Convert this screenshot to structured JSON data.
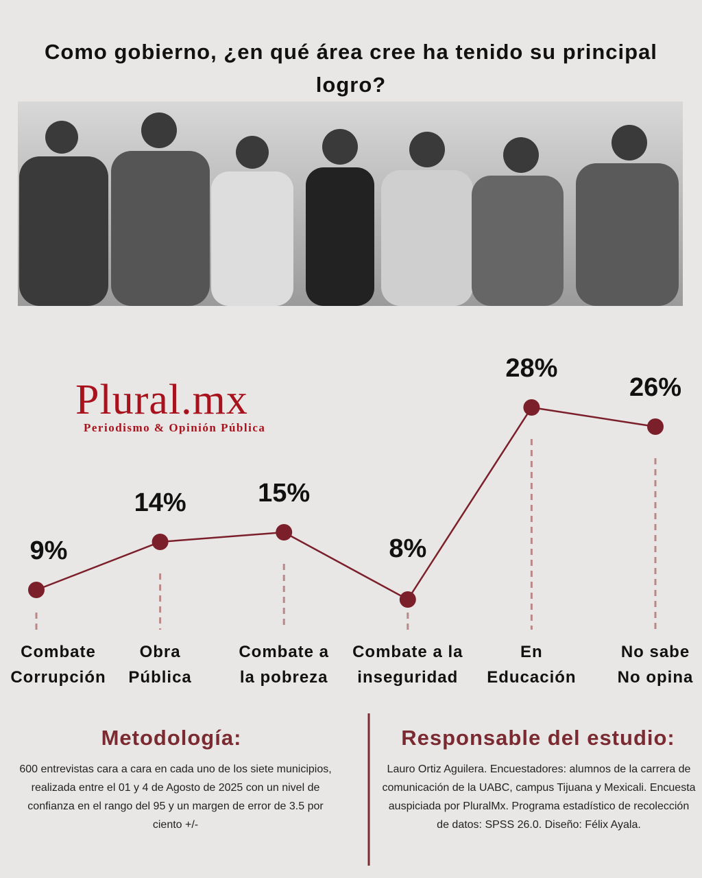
{
  "chart_data": {
    "type": "line",
    "title": "Como gobierno, ¿en qué área cree ha tenido su principal logro?",
    "categories": [
      "Combate Corrupción",
      "Obra Pública",
      "Combate a la pobreza",
      "Combate a la inseguridad",
      "En Educación",
      "No sabe No opina"
    ],
    "values": [
      9,
      14,
      15,
      8,
      28,
      26
    ],
    "value_labels": [
      "9%",
      "14%",
      "15%",
      "8%",
      "28%",
      "26%"
    ],
    "color": "#7b1f2a",
    "ylim": [
      0,
      30
    ]
  },
  "logo": {
    "name": "Plural.mx",
    "tagline": "Periodismo & Opinión Pública"
  },
  "methodology": {
    "heading": "Metodología:",
    "text": "600 entrevistas cara a cara en cada uno de los siete municipios, realizada entre el 01 y 4 de Agosto de 2025 con un nivel de confianza en el rango del 95 y un margen de error de 3.5 por ciento +/-"
  },
  "responsible": {
    "heading": "Responsable del estudio:",
    "text": "Lauro Ortiz Aguilera. Encuestadores: alumnos de la carrera de comunicación de la UABC, campus Tijuana y Mexicali. Encuesta auspiciada por PluralMx. Programa estadístico de recolección de datos: SPSS 26.0. Diseño: Félix Ayala."
  }
}
